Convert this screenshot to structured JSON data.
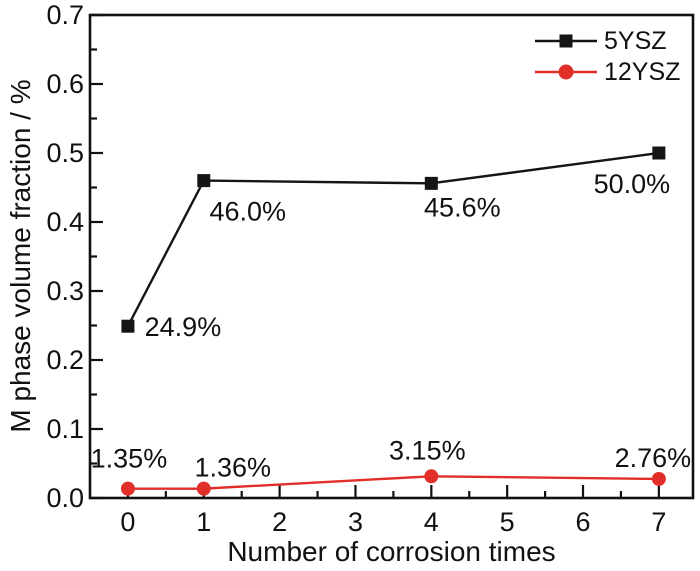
{
  "chart_data": {
    "type": "line",
    "title": "",
    "xlabel": "Number of corrosion times",
    "ylabel": "M phase volume fraction / %",
    "x": [
      0,
      1,
      4,
      7
    ],
    "series": [
      {
        "name": "5YSZ",
        "color": "#151515",
        "marker": "square",
        "values": [
          0.249,
          0.46,
          0.456,
          0.5
        ],
        "point_labels": [
          "24.9%",
          "46.0%",
          "45.6%",
          "50.0%"
        ],
        "label_offsets": [
          [
            55,
            1
          ],
          [
            44,
            31
          ],
          [
            31,
            24
          ],
          [
            -27,
            31
          ]
        ]
      },
      {
        "name": "12YSZ",
        "color": "#e12e28",
        "marker": "circle",
        "values": [
          0.0135,
          0.0136,
          0.0315,
          0.0276
        ],
        "point_labels": [
          "1.35%",
          "1.36%",
          "3.15%",
          "2.76%"
        ],
        "label_offsets": [
          [
            1,
            -30
          ],
          [
            29,
            -21
          ],
          [
            -4,
            -26
          ],
          [
            -6,
            -21
          ]
        ]
      }
    ],
    "xlim": [
      -0.5,
      7.45
    ],
    "ylim": [
      0,
      0.7
    ],
    "x_ticks": [
      0,
      1,
      2,
      3,
      4,
      5,
      6,
      7
    ],
    "x_tick_labels": [
      "0",
      "1",
      "2",
      "3",
      "4",
      "5",
      "6",
      "7"
    ],
    "x_minor_step": 0.5,
    "y_ticks": [
      0,
      0.1,
      0.2,
      0.3,
      0.4,
      0.5,
      0.6,
      0.7
    ],
    "y_tick_labels": [
      "0.0",
      "0.1",
      "0.2",
      "0.3",
      "0.4",
      "0.5",
      "0.6",
      "0.7"
    ],
    "y_minor_step": 0.05,
    "grid": false,
    "legend_position": "top-right",
    "axis_color": "#111111"
  }
}
